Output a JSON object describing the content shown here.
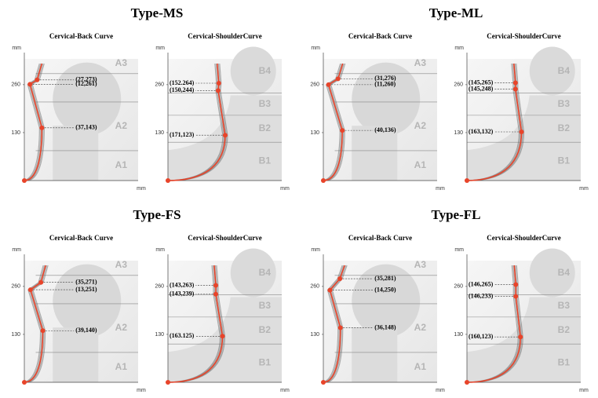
{
  "chart_data": [
    {
      "title": "Type-MS",
      "panels": [
        {
          "type": "scatter",
          "subtitle": "Cervical-Back Curve",
          "ylabel": "mm",
          "xlabel": "mm",
          "xlim": [
            0,
            240
          ],
          "ylim": [
            0,
            330
          ],
          "yticks": [
            130,
            260
          ],
          "zones": [
            "A1",
            "A2",
            "A3"
          ],
          "zone_lines": [
            81,
            213,
            290
          ],
          "color": "#e8442a",
          "side": "right",
          "x": [
            0,
            27,
            12,
            37
          ],
          "values": [
            0,
            273,
            261,
            143
          ],
          "value_labels": [
            null,
            "(27,273)",
            "(12,261)",
            "(37,143)"
          ]
        },
        {
          "type": "scatter",
          "subtitle": "Cervical-ShoulderCurve",
          "ylabel": "mm",
          "xlabel": "mm",
          "xlim": [
            0,
            340
          ],
          "ylim": [
            0,
            330
          ],
          "yticks": [
            130,
            260
          ],
          "zones": [
            "B1",
            "B2",
            "B3",
            "B4"
          ],
          "zone_lines": [
            104,
            177,
            237
          ],
          "color": "#e8442a",
          "side": "left",
          "x": [
            0,
            152,
            150,
            171
          ],
          "values": [
            0,
            264,
            244,
            123
          ],
          "value_labels": [
            null,
            "(152.264)",
            "(150,244)",
            "(171,123)"
          ]
        }
      ]
    },
    {
      "title": "Type-ML",
      "panels": [
        {
          "type": "scatter",
          "subtitle": "Cervical-Back Curve",
          "ylabel": "mm",
          "xlabel": "mm",
          "xlim": [
            0,
            240
          ],
          "ylim": [
            0,
            330
          ],
          "yticks": [
            130,
            260
          ],
          "zones": [
            "A1",
            "A2",
            "A3"
          ],
          "zone_lines": [
            81,
            213,
            290
          ],
          "color": "#e8442a",
          "side": "right",
          "x": [
            0,
            31,
            11,
            40
          ],
          "values": [
            0,
            276,
            260,
            136
          ],
          "value_labels": [
            null,
            "(31,276)",
            "(11,260)",
            "(40,136)"
          ]
        },
        {
          "type": "scatter",
          "subtitle": "Cervical-ShoulderCurve",
          "ylabel": "mm",
          "xlabel": "mm",
          "xlim": [
            0,
            340
          ],
          "ylim": [
            0,
            330
          ],
          "yticks": [
            130,
            260
          ],
          "zones": [
            "B1",
            "B2",
            "B3",
            "B4"
          ],
          "zone_lines": [
            104,
            177,
            237
          ],
          "color": "#e8442a",
          "side": "left",
          "x": [
            0,
            145,
            145,
            163
          ],
          "values": [
            0,
            265,
            248,
            132
          ],
          "value_labels": [
            null,
            "(145,265)",
            "(145,248)",
            "(163,132)"
          ]
        }
      ]
    },
    {
      "title": "Type-FS",
      "panels": [
        {
          "type": "scatter",
          "subtitle": "Cervical-Back Curve",
          "ylabel": "mm",
          "xlabel": "mm",
          "xlim": [
            0,
            240
          ],
          "ylim": [
            0,
            330
          ],
          "yticks": [
            130,
            260
          ],
          "zones": [
            "A1",
            "A2",
            "A3"
          ],
          "zone_lines": [
            81,
            213,
            290
          ],
          "color": "#e8442a",
          "side": "right",
          "x": [
            0,
            35,
            13,
            39
          ],
          "values": [
            0,
            271,
            251,
            140
          ],
          "value_labels": [
            null,
            "(35,271)",
            "(13,251)",
            "(39,140)"
          ]
        },
        {
          "type": "scatter",
          "subtitle": "Cervical-ShoulderCurve",
          "ylabel": "mm",
          "xlabel": "mm",
          "xlim": [
            0,
            340
          ],
          "ylim": [
            0,
            330
          ],
          "yticks": [
            130,
            260
          ],
          "zones": [
            "B1",
            "B2",
            "B3",
            "B4"
          ],
          "zone_lines": [
            104,
            177,
            237
          ],
          "color": "#e8442a",
          "side": "left",
          "x": [
            0,
            143,
            143,
            163
          ],
          "values": [
            0,
            263,
            239,
            125
          ],
          "value_labels": [
            null,
            "(143,263)",
            "(143,239)",
            "(163.125)"
          ]
        }
      ]
    },
    {
      "title": "Type-FL",
      "panels": [
        {
          "type": "scatter",
          "subtitle": "Cervical-Back Curve",
          "ylabel": "mm",
          "xlabel": "mm",
          "xlim": [
            0,
            240
          ],
          "ylim": [
            0,
            330
          ],
          "yticks": [
            130,
            260
          ],
          "zones": [
            "A1",
            "A2",
            "A3"
          ],
          "zone_lines": [
            81,
            213,
            290
          ],
          "color": "#e8442a",
          "side": "right",
          "x": [
            0,
            35,
            14,
            36
          ],
          "values": [
            0,
            281,
            250,
            148
          ],
          "value_labels": [
            null,
            "(35,281)",
            "(14,250)",
            "(36,148)"
          ]
        },
        {
          "type": "scatter",
          "subtitle": "Cervical-ShoulderCurve",
          "ylabel": "mm",
          "xlabel": "mm",
          "xlim": [
            0,
            340
          ],
          "ylim": [
            0,
            330
          ],
          "yticks": [
            130,
            260
          ],
          "zones": [
            "B1",
            "B2",
            "B3",
            "B4"
          ],
          "zone_lines": [
            104,
            177,
            237
          ],
          "color": "#e8442a",
          "side": "left",
          "x": [
            0,
            146,
            146,
            160
          ],
          "values": [
            0,
            265,
            233,
            123
          ],
          "value_labels": [
            null,
            "(146,265)",
            "(146,233)",
            "(160,123)"
          ]
        }
      ]
    }
  ]
}
